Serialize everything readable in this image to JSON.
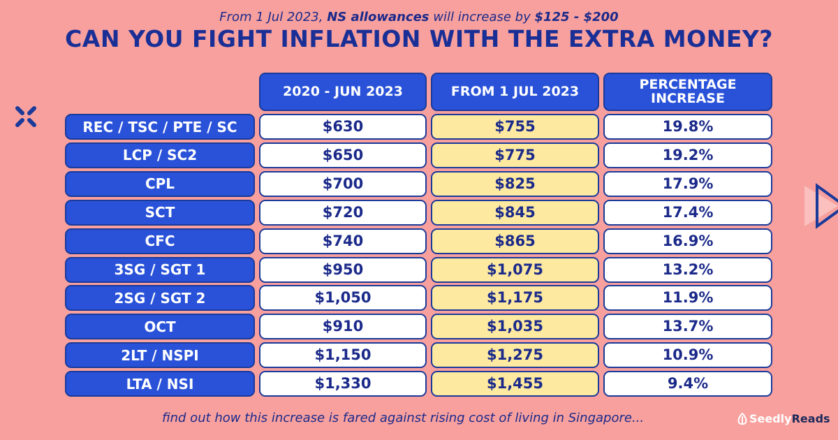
{
  "subtitle": {
    "pre": "From 1 Jul 2023, ",
    "bold1": "NS allowances",
    "mid": " will increase by ",
    "bold2": "$125 - $200"
  },
  "title": "CAN YOU FIGHT INFLATION WITH THE EXTRA MONEY?",
  "headers": [
    "2020 - JUN 2023",
    "FROM 1 JUL 2023",
    "PERCENTAGE INCREASE"
  ],
  "rows": [
    {
      "rank": "REC / TSC / PTE / SC",
      "old": "$630",
      "new": "$755",
      "pct": "19.8%"
    },
    {
      "rank": "LCP / SC2",
      "old": "$650",
      "new": "$775",
      "pct": "19.2%"
    },
    {
      "rank": "CPL",
      "old": "$700",
      "new": "$825",
      "pct": "17.9%"
    },
    {
      "rank": "SCT",
      "old": "$720",
      "new": "$845",
      "pct": "17.4%"
    },
    {
      "rank": "CFC",
      "old": "$740",
      "new": "$865",
      "pct": "16.9%"
    },
    {
      "rank": "3SG / SGT 1",
      "old": "$950",
      "new": "$1,075",
      "pct": "13.2%"
    },
    {
      "rank": "2SG / SGT 2",
      "old": "$1,050",
      "new": "$1,175",
      "pct": "11.9%"
    },
    {
      "rank": "OCT",
      "old": "$910",
      "new": "$1,035",
      "pct": "13.7%"
    },
    {
      "rank": "2LT / NSPI",
      "old": "$1,150",
      "new": "$1,275",
      "pct": "10.9%"
    },
    {
      "rank": "LTA / NSI",
      "old": "$1,330",
      "new": "$1,455",
      "pct": "9.4%"
    }
  ],
  "footer": "find out how this increase is fared against rising cost of living in Singapore...",
  "logo": {
    "seedly": "Seedly",
    "reads": "Reads"
  }
}
